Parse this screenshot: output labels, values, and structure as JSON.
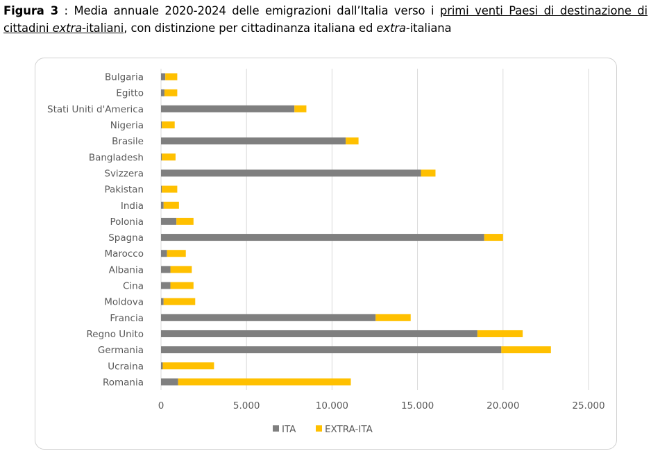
{
  "caption": {
    "label": "Figura 3",
    "sep": " : ",
    "text1": "Media annuale 2020-2024 delle emigrazioni dall’Italia verso i ",
    "underlined_a": "primi venti Paesi di destinazione di cittadini ",
    "underlined_italic": "extra",
    "underlined_b": "-italiani",
    "text2": ", con distinzione per cittadinanza italiana ed ",
    "italic": "extra",
    "text3": "-italiana"
  },
  "colors": {
    "ita": "#7f7f7f",
    "extra": "#ffc000",
    "grid": "#d9d9d9",
    "text": "#595959"
  },
  "chart_data": {
    "type": "bar",
    "orientation": "horizontal",
    "stacked": true,
    "categories": [
      "Bulgaria",
      "Egitto",
      "Stati Uniti d'America",
      "Nigeria",
      "Brasile",
      "Bangladesh",
      "Svizzera",
      "Pakistan",
      "India",
      "Polonia",
      "Spagna",
      "Marocco",
      "Albania",
      "Cina",
      "Moldova",
      "Francia",
      "Regno Unito",
      "Germania",
      "Ucraina",
      "Romania"
    ],
    "series": [
      {
        "name": "ITA",
        "color": "#7f7f7f",
        "values": [
          250,
          200,
          7800,
          50,
          10800,
          50,
          15200,
          50,
          150,
          900,
          18900,
          350,
          550,
          550,
          150,
          12550,
          18500,
          19900,
          100,
          1000
        ]
      },
      {
        "name": "EXTRA-ITA",
        "color": "#ffc000",
        "values": [
          700,
          750,
          700,
          750,
          750,
          800,
          850,
          900,
          900,
          1000,
          1100,
          1100,
          1250,
          1350,
          1850,
          2050,
          2650,
          2900,
          3000,
          10100
        ]
      }
    ],
    "xlim": [
      0,
      25000
    ],
    "x_ticks": [
      "0",
      "5.000",
      "10.000",
      "15.000",
      "20.000",
      "25.000"
    ],
    "x_tick_values": [
      0,
      5000,
      10000,
      15000,
      20000,
      25000
    ],
    "grid": true,
    "legend_position": "bottom",
    "title": "",
    "xlabel": "",
    "ylabel": ""
  }
}
